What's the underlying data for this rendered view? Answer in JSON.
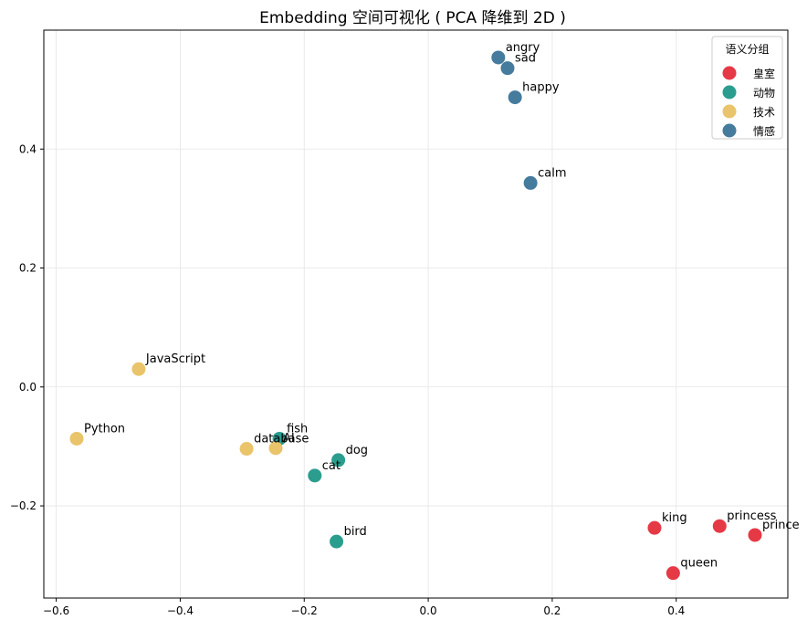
{
  "chart_data": {
    "type": "scatter",
    "title": "Embedding 空间可视化 ( PCA 降维到 2D )",
    "xlabel": "",
    "ylabel": "",
    "xlim": [
      -0.62,
      0.58
    ],
    "ylim": [
      -0.355,
      0.6
    ],
    "x_ticks": [
      -0.6,
      -0.4,
      -0.2,
      0.0,
      0.2,
      0.4
    ],
    "x_tick_labels": [
      "−0.6",
      "−0.4",
      "−0.2",
      "0.0",
      "0.2",
      "0.4"
    ],
    "y_ticks": [
      -0.2,
      0.0,
      0.2,
      0.4
    ],
    "y_tick_labels": [
      "−0.2",
      "0.0",
      "0.2",
      "0.4"
    ],
    "grid": true,
    "legend": {
      "title": "语义分组",
      "position": "top-right"
    },
    "series": [
      {
        "name": "皇室",
        "color": "#e63946",
        "points": [
          {
            "label": "king",
            "x": 0.365,
            "y": -0.237
          },
          {
            "label": "queen",
            "x": 0.395,
            "y": -0.313
          },
          {
            "label": "princess",
            "x": 0.47,
            "y": -0.234
          },
          {
            "label": "prince",
            "x": 0.527,
            "y": -0.249
          }
        ]
      },
      {
        "name": "动物",
        "color": "#2a9d8f",
        "points": [
          {
            "label": "fish",
            "x": -0.24,
            "y": -0.087
          },
          {
            "label": "dog",
            "x": -0.145,
            "y": -0.123
          },
          {
            "label": "cat",
            "x": -0.183,
            "y": -0.149
          },
          {
            "label": "bird",
            "x": -0.148,
            "y": -0.26
          }
        ]
      },
      {
        "name": "技术",
        "color": "#e9c46a",
        "points": [
          {
            "label": "JavaScript",
            "x": -0.467,
            "y": 0.03
          },
          {
            "label": "Python",
            "x": -0.567,
            "y": -0.087
          },
          {
            "label": "database",
            "x": -0.293,
            "y": -0.104
          },
          {
            "label": "AI",
            "x": -0.246,
            "y": -0.103
          }
        ]
      },
      {
        "name": "情感",
        "color": "#457b9d",
        "points": [
          {
            "label": "angry",
            "x": 0.113,
            "y": 0.554
          },
          {
            "label": "sad",
            "x": 0.128,
            "y": 0.536
          },
          {
            "label": "happy",
            "x": 0.14,
            "y": 0.487
          },
          {
            "label": "calm",
            "x": 0.165,
            "y": 0.343
          }
        ]
      }
    ]
  }
}
